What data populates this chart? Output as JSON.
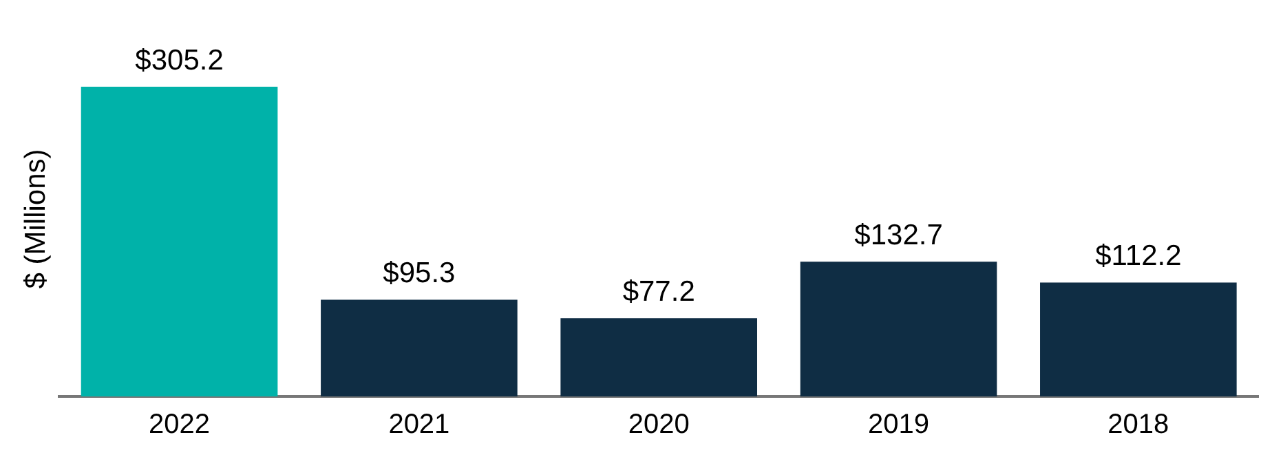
{
  "chart_data": {
    "type": "bar",
    "ylabel": "$ (Millions)",
    "categories": [
      "2022",
      "2021",
      "2020",
      "2019",
      "2018"
    ],
    "values": [
      305.2,
      95.3,
      77.2,
      132.7,
      112.2
    ],
    "colors": [
      "#00b2a9",
      "#0f2d44",
      "#0f2d44",
      "#0f2d44",
      "#0f2d44"
    ],
    "value_labels": [
      "$305.2",
      "$95.3",
      "$77.2",
      "$132.7",
      "$112.2"
    ],
    "grid": false,
    "legend": false
  }
}
